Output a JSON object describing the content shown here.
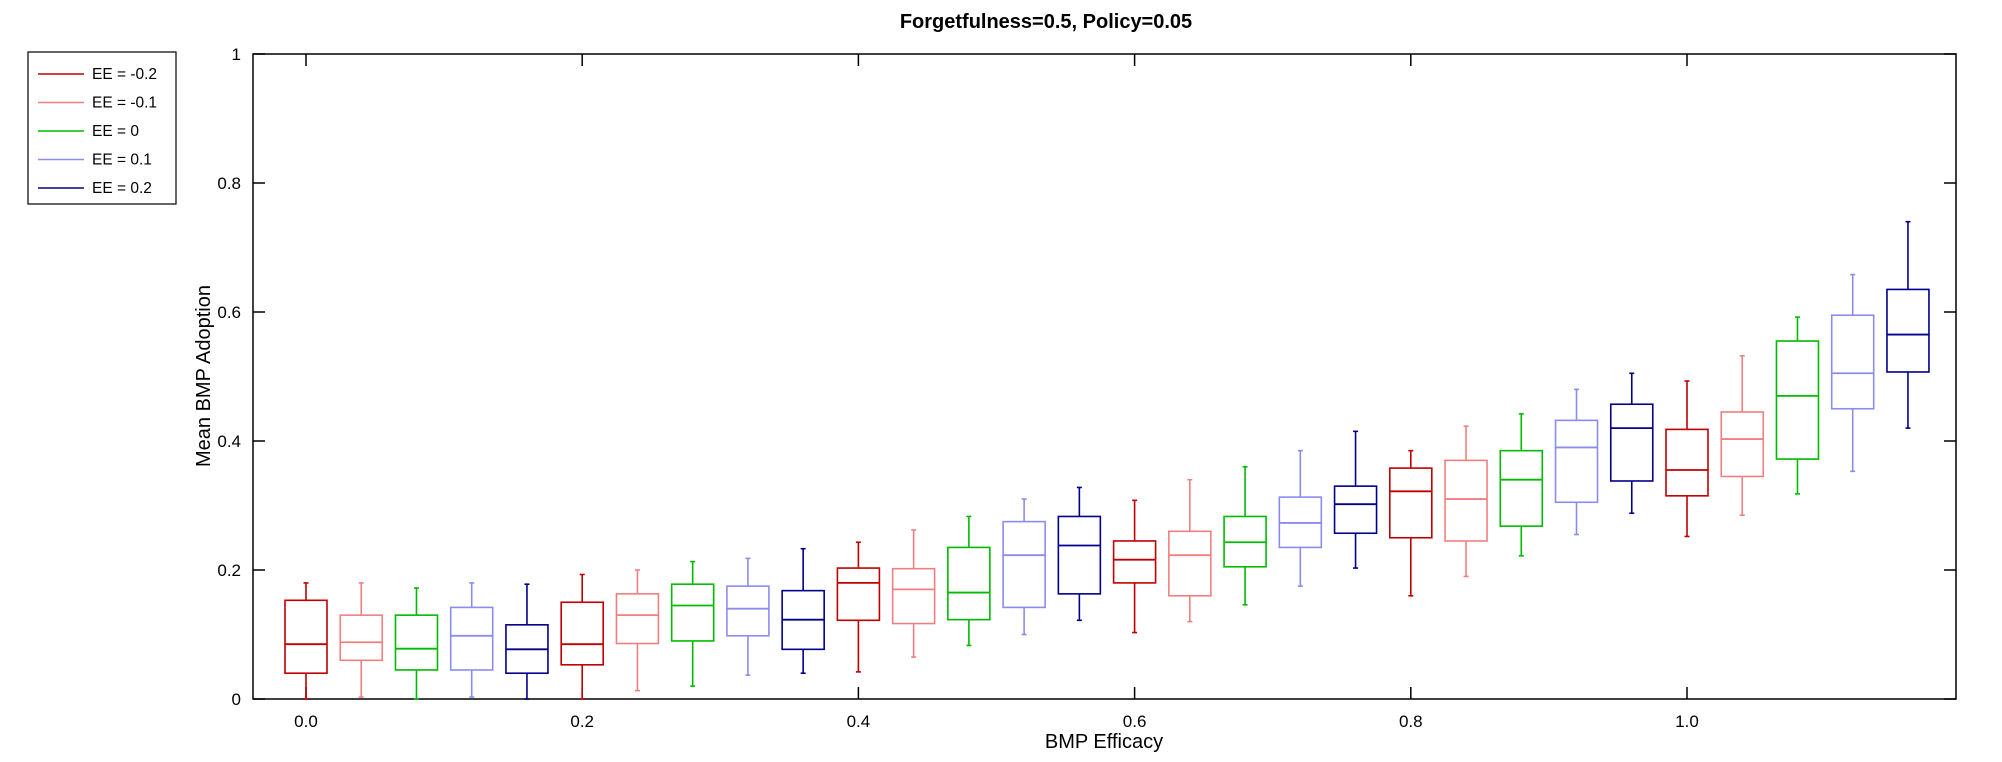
{
  "chart_data": {
    "type": "boxplot",
    "title": "Forgetfulness=0.5, Policy=0.05",
    "xlabel": "BMP Efficacy",
    "ylabel": "Mean BMP Adoption",
    "ylim": [
      0,
      1
    ],
    "x_ticks": [
      "0.0",
      "0.2",
      "0.4",
      "0.6",
      "0.8",
      "1.0"
    ],
    "y_ticks": [
      "0",
      "0.2",
      "0.4",
      "0.6",
      "0.8",
      "1"
    ],
    "legend_position": "top-left, outside plot",
    "series": [
      {
        "name": "EE = -0.2",
        "color": "#c00000"
      },
      {
        "name": "EE = -0.1",
        "color": "#f08080"
      },
      {
        "name": "EE = 0",
        "color": "#00bb00"
      },
      {
        "name": "EE = 0.1",
        "color": "#8c8cf0"
      },
      {
        "name": "EE = 0.2",
        "color": "#00008c"
      }
    ],
    "groups": [
      {
        "efficacy": 0.0,
        "boxes": [
          {
            "min": 0.0,
            "q1": 0.04,
            "median": 0.085,
            "q3": 0.153,
            "max": 0.18
          },
          {
            "min": 0.003,
            "q1": 0.06,
            "median": 0.088,
            "q3": 0.13,
            "max": 0.18
          },
          {
            "min": 0.0,
            "q1": 0.045,
            "median": 0.078,
            "q3": 0.13,
            "max": 0.172
          },
          {
            "min": 0.003,
            "q1": 0.045,
            "median": 0.098,
            "q3": 0.142,
            "max": 0.18
          },
          {
            "min": 0.0,
            "q1": 0.04,
            "median": 0.077,
            "q3": 0.115,
            "max": 0.178
          }
        ]
      },
      {
        "efficacy": 0.2,
        "boxes": [
          {
            "min": 0.0,
            "q1": 0.053,
            "median": 0.085,
            "q3": 0.15,
            "max": 0.193
          },
          {
            "min": 0.013,
            "q1": 0.086,
            "median": 0.13,
            "q3": 0.163,
            "max": 0.2
          },
          {
            "min": 0.02,
            "q1": 0.09,
            "median": 0.145,
            "q3": 0.178,
            "max": 0.213
          },
          {
            "min": 0.037,
            "q1": 0.098,
            "median": 0.14,
            "q3": 0.175,
            "max": 0.218
          },
          {
            "min": 0.04,
            "q1": 0.077,
            "median": 0.123,
            "q3": 0.168,
            "max": 0.233
          }
        ]
      },
      {
        "efficacy": 0.4,
        "boxes": [
          {
            "min": 0.042,
            "q1": 0.122,
            "median": 0.18,
            "q3": 0.203,
            "max": 0.243
          },
          {
            "min": 0.065,
            "q1": 0.117,
            "median": 0.17,
            "q3": 0.202,
            "max": 0.262
          },
          {
            "min": 0.083,
            "q1": 0.123,
            "median": 0.165,
            "q3": 0.235,
            "max": 0.283
          },
          {
            "min": 0.1,
            "q1": 0.142,
            "median": 0.223,
            "q3": 0.275,
            "max": 0.31
          },
          {
            "min": 0.122,
            "q1": 0.163,
            "median": 0.238,
            "q3": 0.283,
            "max": 0.328
          }
        ]
      },
      {
        "efficacy": 0.6,
        "boxes": [
          {
            "min": 0.103,
            "q1": 0.18,
            "median": 0.216,
            "q3": 0.245,
            "max": 0.308
          },
          {
            "min": 0.12,
            "q1": 0.16,
            "median": 0.223,
            "q3": 0.26,
            "max": 0.34
          },
          {
            "min": 0.146,
            "q1": 0.205,
            "median": 0.243,
            "q3": 0.283,
            "max": 0.36
          },
          {
            "min": 0.175,
            "q1": 0.235,
            "median": 0.273,
            "q3": 0.313,
            "max": 0.385
          },
          {
            "min": 0.203,
            "q1": 0.257,
            "median": 0.302,
            "q3": 0.33,
            "max": 0.415
          }
        ]
      },
      {
        "efficacy": 0.8,
        "boxes": [
          {
            "min": 0.16,
            "q1": 0.25,
            "median": 0.322,
            "q3": 0.358,
            "max": 0.385
          },
          {
            "min": 0.19,
            "q1": 0.245,
            "median": 0.31,
            "q3": 0.37,
            "max": 0.423
          },
          {
            "min": 0.222,
            "q1": 0.268,
            "median": 0.34,
            "q3": 0.385,
            "max": 0.442
          },
          {
            "min": 0.255,
            "q1": 0.305,
            "median": 0.39,
            "q3": 0.432,
            "max": 0.48
          },
          {
            "min": 0.288,
            "q1": 0.338,
            "median": 0.42,
            "q3": 0.457,
            "max": 0.505
          }
        ]
      },
      {
        "efficacy": 1.0,
        "boxes": [
          {
            "min": 0.252,
            "q1": 0.315,
            "median": 0.355,
            "q3": 0.418,
            "max": 0.493
          },
          {
            "min": 0.285,
            "q1": 0.345,
            "median": 0.403,
            "q3": 0.445,
            "max": 0.532
          },
          {
            "min": 0.318,
            "q1": 0.372,
            "median": 0.47,
            "q3": 0.555,
            "max": 0.592
          },
          {
            "min": 0.353,
            "q1": 0.45,
            "median": 0.505,
            "q3": 0.595,
            "max": 0.658
          },
          {
            "min": 0.42,
            "q1": 0.507,
            "median": 0.565,
            "q3": 0.635,
            "max": 0.74
          }
        ]
      }
    ]
  }
}
